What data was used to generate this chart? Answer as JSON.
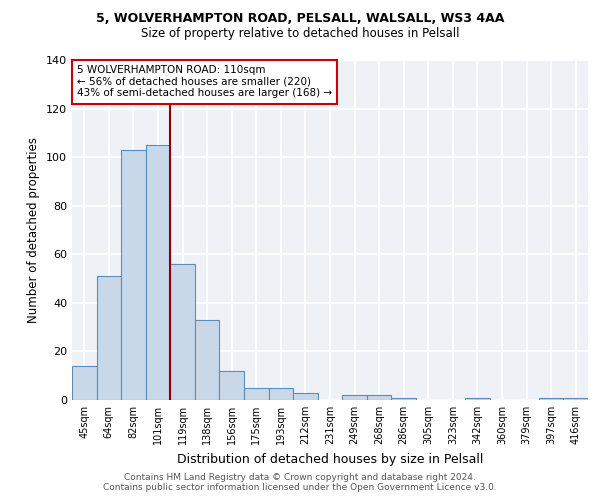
{
  "title1": "5, WOLVERHAMPTON ROAD, PELSALL, WALSALL, WS3 4AA",
  "title2": "Size of property relative to detached houses in Pelsall",
  "xlabel": "Distribution of detached houses by size in Pelsall",
  "ylabel": "Number of detached properties",
  "categories": [
    "45sqm",
    "64sqm",
    "82sqm",
    "101sqm",
    "119sqm",
    "138sqm",
    "156sqm",
    "175sqm",
    "193sqm",
    "212sqm",
    "231sqm",
    "249sqm",
    "268sqm",
    "286sqm",
    "305sqm",
    "323sqm",
    "342sqm",
    "360sqm",
    "379sqm",
    "397sqm",
    "416sqm"
  ],
  "values": [
    14,
    51,
    103,
    105,
    56,
    33,
    12,
    5,
    5,
    3,
    0,
    2,
    2,
    1,
    0,
    0,
    1,
    0,
    0,
    1,
    1
  ],
  "bar_color": "#c8d8e8",
  "bar_edge_color": "#5b8db8",
  "vline_x": 3.5,
  "vline_color": "#8b0000",
  "annotation_text": "5 WOLVERHAMPTON ROAD: 110sqm\n← 56% of detached houses are smaller (220)\n43% of semi-detached houses are larger (168) →",
  "annotation_box_color": "white",
  "annotation_box_edge": "#cc0000",
  "footer": "Contains HM Land Registry data © Crown copyright and database right 2024.\nContains public sector information licensed under the Open Government Licence v3.0.",
  "ylim": [
    0,
    140
  ],
  "bg_color": "#eef2f7",
  "grid_color": "white"
}
